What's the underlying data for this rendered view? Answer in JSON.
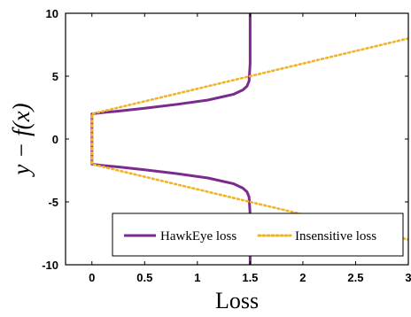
{
  "chart_data": {
    "type": "line",
    "title": "",
    "xlabel": "Loss",
    "ylabel": "y − f(x)",
    "xlim": [
      -0.25,
      3
    ],
    "ylim": [
      -10,
      10
    ],
    "xticks": [
      "0",
      "0.5",
      "1",
      "1.5",
      "2",
      "2.5",
      "3"
    ],
    "yticks": [
      "10",
      "5",
      "0",
      "-5",
      "-10"
    ],
    "grid": false,
    "legend_position": "bottom-right",
    "series": [
      {
        "name": "HawkEye loss",
        "color": "#7b2a8e",
        "style": "solid",
        "points": [
          [
            1.5,
            10
          ],
          [
            1.5,
            6
          ],
          [
            1.49,
            4.6
          ],
          [
            1.47,
            4.2
          ],
          [
            1.43,
            3.9
          ],
          [
            1.34,
            3.55
          ],
          [
            1.1,
            3.1
          ],
          [
            0.8,
            2.75
          ],
          [
            0.5,
            2.45
          ],
          [
            0.25,
            2.22
          ],
          [
            0.1,
            2.1
          ],
          [
            0.02,
            2.02
          ],
          [
            0,
            2
          ],
          [
            0,
            0
          ],
          [
            0,
            -2
          ],
          [
            0.02,
            -2.02
          ],
          [
            0.1,
            -2.1
          ],
          [
            0.25,
            -2.22
          ],
          [
            0.5,
            -2.45
          ],
          [
            0.8,
            -2.75
          ],
          [
            1.1,
            -3.1
          ],
          [
            1.34,
            -3.55
          ],
          [
            1.43,
            -3.9
          ],
          [
            1.47,
            -4.2
          ],
          [
            1.49,
            -4.6
          ],
          [
            1.5,
            -6
          ],
          [
            1.5,
            -10
          ]
        ]
      },
      {
        "name": "Insensitive loss",
        "color": "#f0b429",
        "style": "dotted",
        "points": [
          [
            3,
            8
          ],
          [
            0,
            2
          ],
          [
            0,
            0
          ],
          [
            0,
            -2
          ],
          [
            3,
            -8
          ]
        ]
      }
    ]
  }
}
